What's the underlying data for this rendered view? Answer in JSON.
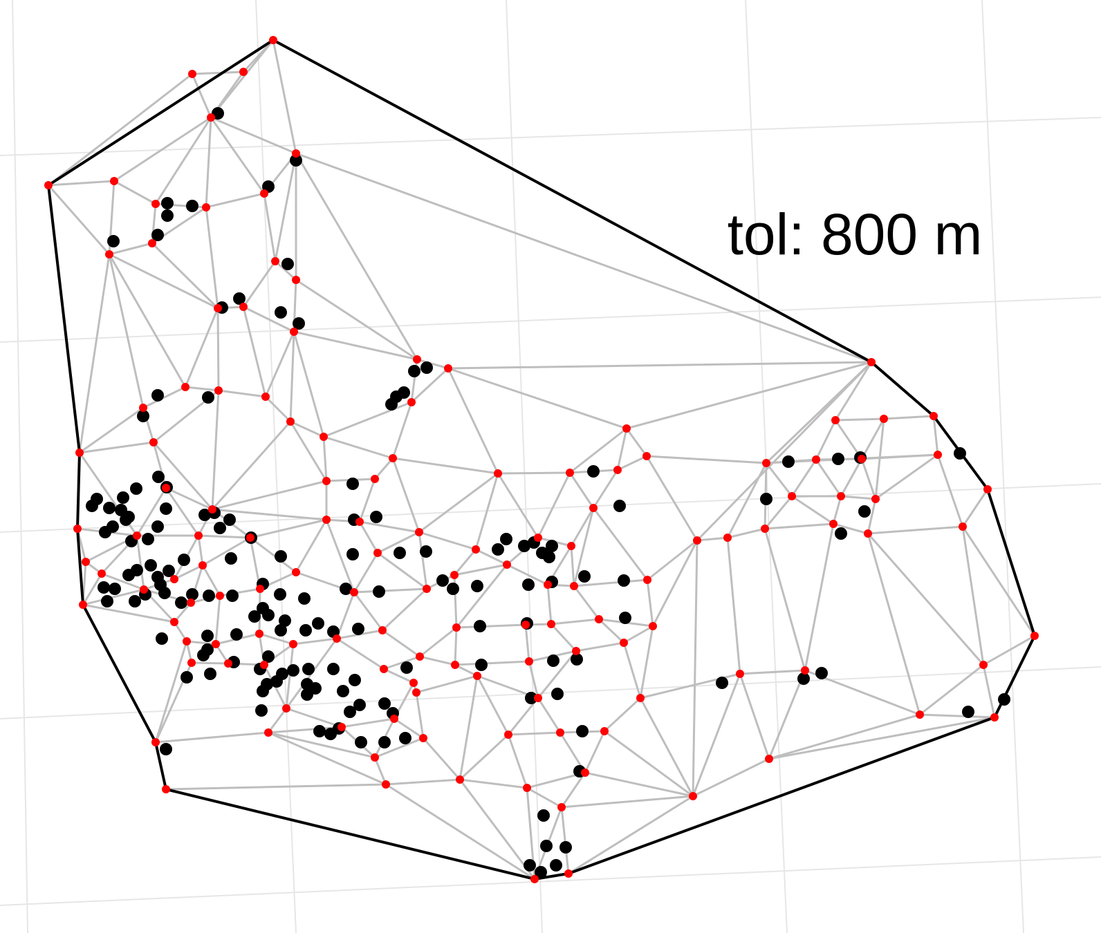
{
  "annotation": {
    "text": "tol: 800 m"
  },
  "colors": {
    "background": "#ffffff",
    "grid": "#e6e6e6",
    "hull": "#000000",
    "triangulation": "#bebebe",
    "vertex": "#ff0000",
    "point": "#000000"
  }
}
